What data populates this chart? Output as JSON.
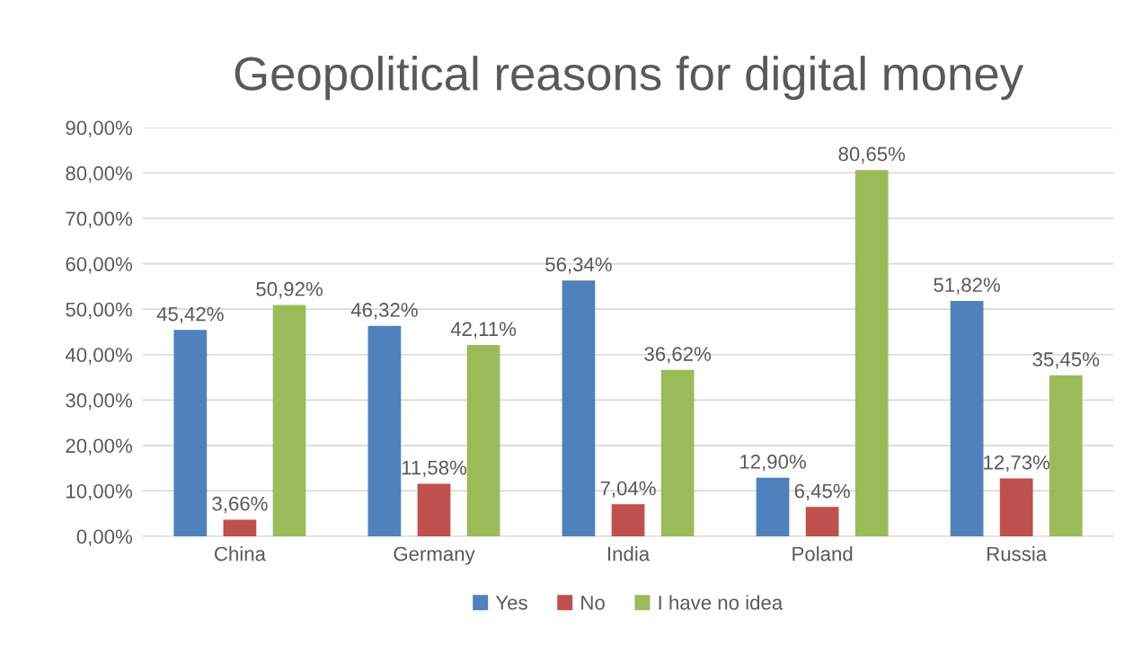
{
  "chart_data": {
    "type": "bar",
    "title": "Geopolitical reasons for digital money",
    "categories": [
      "China",
      "Germany",
      "India",
      "Poland",
      "Russia"
    ],
    "series": [
      {
        "name": "Yes",
        "color": "#4f81bd",
        "values": [
          45.42,
          46.32,
          56.34,
          12.9,
          51.82
        ],
        "value_labels": [
          "45,42%",
          "46,32%",
          "56,34%",
          "12,90%",
          "51,82%"
        ]
      },
      {
        "name": "No",
        "color": "#c0504d",
        "values": [
          3.66,
          11.58,
          7.04,
          6.45,
          12.73
        ],
        "value_labels": [
          "3,66%",
          "11,58%",
          "7,04%",
          "6,45%",
          "12,73%"
        ]
      },
      {
        "name": "I have no idea",
        "color": "#9bbb59",
        "values": [
          50.92,
          42.11,
          36.62,
          80.65,
          35.45
        ],
        "value_labels": [
          "50,92%",
          "42,11%",
          "36,62%",
          "80,65%",
          "35,45%"
        ]
      }
    ],
    "ylim": [
      0,
      90
    ],
    "yticks": [
      {
        "value": 0,
        "label": "0,00%"
      },
      {
        "value": 10,
        "label": "10,00%"
      },
      {
        "value": 20,
        "label": "20,00%"
      },
      {
        "value": 30,
        "label": "30,00%"
      },
      {
        "value": 40,
        "label": "40,00%"
      },
      {
        "value": 50,
        "label": "50,00%"
      },
      {
        "value": 60,
        "label": "60,00%"
      },
      {
        "value": 70,
        "label": "70,00%"
      },
      {
        "value": 80,
        "label": "80,00%"
      },
      {
        "value": 90,
        "label": "90,00%"
      }
    ],
    "grid": "y",
    "legend": "bottom"
  }
}
